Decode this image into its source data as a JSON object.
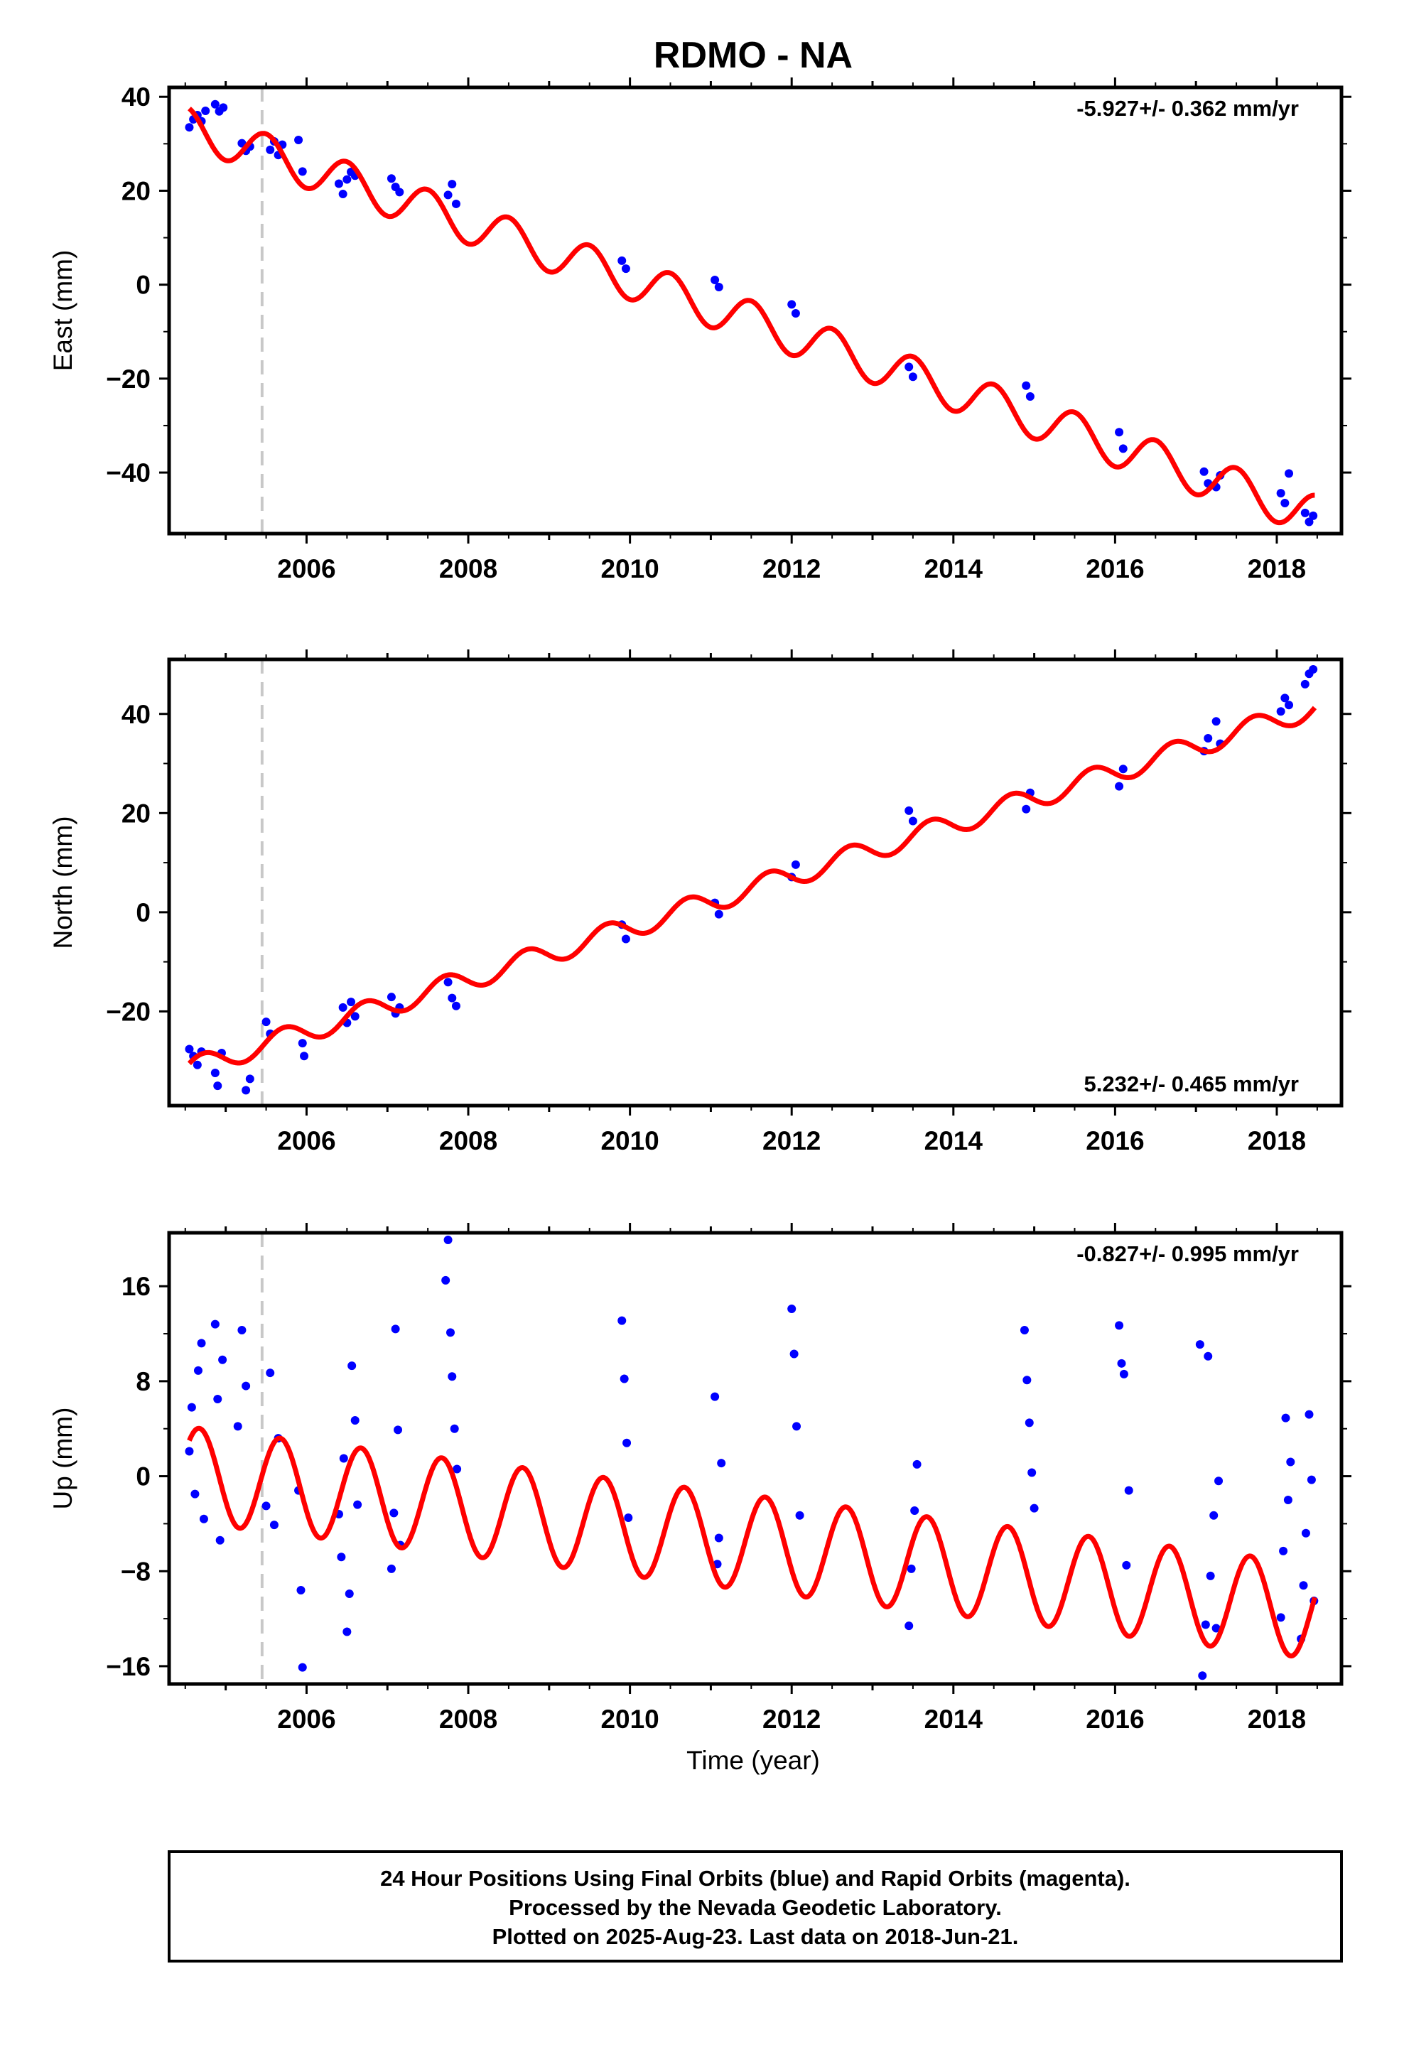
{
  "chart_data": [
    {
      "type": "scatter",
      "title": "RDMO - NA",
      "ylabel": "East (mm)",
      "xlabel": "",
      "xlim": [
        2004.3,
        2018.8
      ],
      "ylim": [
        -53,
        42
      ],
      "yticks": [
        -40,
        -20,
        0,
        20,
        40
      ],
      "xticks": [
        2006,
        2008,
        2010,
        2012,
        2014,
        2016,
        2018
      ],
      "rate_label": "-5.927+/- 0.362 mm/yr",
      "rate_position": "top-right",
      "dashed_line_x": 2005.45,
      "model": {
        "name": "Model fit",
        "color": "#ff0000",
        "intercept": 37.5,
        "slope": -5.927,
        "amplitude": 4.3,
        "phase": 1.9,
        "offset": 0
      },
      "series": [
        {
          "name": "Final Orbits",
          "color": "#0000ff",
          "points": [
            [
              2004.55,
              33.5
            ],
            [
              2004.6,
              35.2
            ],
            [
              2004.65,
              36.1
            ],
            [
              2004.7,
              34.8
            ],
            [
              2004.75,
              37.0
            ],
            [
              2004.87,
              38.4
            ],
            [
              2004.92,
              36.9
            ],
            [
              2004.97,
              37.7
            ],
            [
              2005.2,
              30.1
            ],
            [
              2005.25,
              28.5
            ],
            [
              2005.3,
              29.4
            ],
            [
              2005.55,
              28.7
            ],
            [
              2005.6,
              30.5
            ],
            [
              2005.65,
              27.6
            ],
            [
              2005.7,
              29.8
            ],
            [
              2005.9,
              30.8
            ],
            [
              2005.95,
              24.1
            ],
            [
              2006.4,
              21.5
            ],
            [
              2006.45,
              19.3
            ],
            [
              2006.5,
              22.4
            ],
            [
              2006.55,
              24.0
            ],
            [
              2006.6,
              23.2
            ],
            [
              2007.05,
              22.6
            ],
            [
              2007.1,
              20.8
            ],
            [
              2007.15,
              19.7
            ],
            [
              2007.75,
              19.1
            ],
            [
              2007.8,
              21.4
            ],
            [
              2007.85,
              17.2
            ],
            [
              2009.9,
              5.1
            ],
            [
              2009.95,
              3.4
            ],
            [
              2011.05,
              1.0
            ],
            [
              2011.1,
              -0.5
            ],
            [
              2012.0,
              -4.2
            ],
            [
              2012.05,
              -6.1
            ],
            [
              2013.45,
              -17.5
            ],
            [
              2013.5,
              -19.6
            ],
            [
              2014.9,
              -21.5
            ],
            [
              2014.95,
              -23.8
            ],
            [
              2016.05,
              -31.4
            ],
            [
              2016.1,
              -34.9
            ],
            [
              2017.1,
              -39.8
            ],
            [
              2017.15,
              -42.3
            ],
            [
              2017.25,
              -43.1
            ],
            [
              2017.3,
              -40.6
            ],
            [
              2018.05,
              -44.4
            ],
            [
              2018.1,
              -46.5
            ],
            [
              2018.15,
              -40.2
            ],
            [
              2018.35,
              -48.6
            ],
            [
              2018.4,
              -50.5
            ],
            [
              2018.45,
              -49.2
            ]
          ]
        }
      ]
    },
    {
      "type": "scatter",
      "title": "",
      "ylabel": "North (mm)",
      "xlabel": "",
      "xlim": [
        2004.3,
        2018.8
      ],
      "ylim": [
        -39,
        51
      ],
      "yticks": [
        -20,
        0,
        20,
        40
      ],
      "xticks": [
        2006,
        2008,
        2010,
        2012,
        2014,
        2016,
        2018
      ],
      "rate_label": "5.232+/- 0.465 mm/yr",
      "rate_position": "bottom-right",
      "dashed_line_x": 2005.45,
      "model": {
        "name": "Model fit",
        "color": "#ff0000",
        "intercept": -30.5,
        "slope": 5.232,
        "amplitude": 2.2,
        "phase": 0.5,
        "offset": 3.0
      },
      "series": [
        {
          "name": "Final Orbits",
          "color": "#0000ff",
          "points": [
            [
              2004.55,
              -27.6
            ],
            [
              2004.6,
              -29.0
            ],
            [
              2004.65,
              -30.8
            ],
            [
              2004.7,
              -28.1
            ],
            [
              2004.87,
              -32.4
            ],
            [
              2004.9,
              -35.0
            ],
            [
              2004.95,
              -28.4
            ],
            [
              2005.25,
              -35.9
            ],
            [
              2005.3,
              -33.6
            ],
            [
              2005.5,
              -22.1
            ],
            [
              2005.55,
              -24.5
            ],
            [
              2005.95,
              -26.4
            ],
            [
              2005.97,
              -29.0
            ],
            [
              2006.45,
              -19.2
            ],
            [
              2006.5,
              -22.3
            ],
            [
              2006.55,
              -18.1
            ],
            [
              2006.6,
              -21.0
            ],
            [
              2007.05,
              -17.1
            ],
            [
              2007.1,
              -20.4
            ],
            [
              2007.15,
              -19.2
            ],
            [
              2007.75,
              -14.1
            ],
            [
              2007.8,
              -17.3
            ],
            [
              2007.85,
              -18.9
            ],
            [
              2009.9,
              -2.5
            ],
            [
              2009.95,
              -5.4
            ],
            [
              2011.05,
              1.9
            ],
            [
              2011.1,
              -0.4
            ],
            [
              2012.0,
              7.1
            ],
            [
              2012.05,
              9.6
            ],
            [
              2013.45,
              20.5
            ],
            [
              2013.5,
              18.4
            ],
            [
              2014.9,
              20.8
            ],
            [
              2014.95,
              24.1
            ],
            [
              2016.05,
              25.4
            ],
            [
              2016.1,
              28.9
            ],
            [
              2017.1,
              32.5
            ],
            [
              2017.15,
              35.1
            ],
            [
              2017.25,
              38.5
            ],
            [
              2017.3,
              34.0
            ],
            [
              2018.05,
              40.5
            ],
            [
              2018.1,
              43.2
            ],
            [
              2018.15,
              41.8
            ],
            [
              2018.35,
              46.0
            ],
            [
              2018.4,
              48.1
            ],
            [
              2018.45,
              49.0
            ]
          ]
        }
      ]
    },
    {
      "type": "scatter",
      "title": "",
      "ylabel": "Up (mm)",
      "xlabel": "Time (year)",
      "xlim": [
        2004.3,
        2018.8
      ],
      "ylim": [
        -17.5,
        20.5
      ],
      "yticks": [
        -16,
        -8,
        0,
        8,
        16
      ],
      "ytick_labels": [
        "−16",
        "−8",
        "0",
        "8",
        "16"
      ],
      "xticks": [
        2006,
        2008,
        2010,
        2012,
        2014,
        2016,
        2018
      ],
      "rate_label": "-0.827+/- 0.995 mm/yr",
      "rate_position": "top-right",
      "dashed_line_x": 2005.45,
      "model": {
        "name": "Model fit",
        "color": "#ff0000",
        "intercept": 3.0,
        "slope": -0.827,
        "amplitude": 4.0,
        "phase": 0.8,
        "offset": 0
      },
      "series": [
        {
          "name": "Final Orbits",
          "color": "#0000ff",
          "points": [
            [
              2004.55,
              2.1
            ],
            [
              2004.58,
              5.8
            ],
            [
              2004.62,
              -1.5
            ],
            [
              2004.66,
              8.9
            ],
            [
              2004.7,
              11.2
            ],
            [
              2004.73,
              -3.6
            ],
            [
              2004.87,
              12.8
            ],
            [
              2004.9,
              6.5
            ],
            [
              2004.93,
              -5.4
            ],
            [
              2004.96,
              9.8
            ],
            [
              2005.15,
              4.2
            ],
            [
              2005.2,
              12.3
            ],
            [
              2005.25,
              7.6
            ],
            [
              2005.5,
              -2.5
            ],
            [
              2005.55,
              8.7
            ],
            [
              2005.6,
              -4.1
            ],
            [
              2005.65,
              3.2
            ],
            [
              2005.9,
              -1.2
            ],
            [
              2005.93,
              -9.6
            ],
            [
              2005.95,
              -16.1
            ],
            [
              2006.4,
              -3.2
            ],
            [
              2006.43,
              -6.8
            ],
            [
              2006.46,
              1.5
            ],
            [
              2006.5,
              -13.1
            ],
            [
              2006.53,
              -9.9
            ],
            [
              2006.56,
              9.3
            ],
            [
              2006.6,
              4.7
            ],
            [
              2006.63,
              -2.4
            ],
            [
              2007.05,
              -7.8
            ],
            [
              2007.08,
              -3.1
            ],
            [
              2007.1,
              12.4
            ],
            [
              2007.13,
              3.9
            ],
            [
              2007.16,
              -5.8
            ],
            [
              2007.72,
              16.5
            ],
            [
              2007.75,
              19.9
            ],
            [
              2007.78,
              12.1
            ],
            [
              2007.8,
              8.4
            ],
            [
              2007.83,
              4.0
            ],
            [
              2007.86,
              0.6
            ],
            [
              2009.9,
              13.1
            ],
            [
              2009.93,
              8.2
            ],
            [
              2009.96,
              2.8
            ],
            [
              2009.98,
              -3.5
            ],
            [
              2011.05,
              6.7
            ],
            [
              2011.08,
              -7.4
            ],
            [
              2011.1,
              -5.2
            ],
            [
              2011.13,
              1.1
            ],
            [
              2012.0,
              14.1
            ],
            [
              2012.03,
              10.3
            ],
            [
              2012.06,
              4.2
            ],
            [
              2012.1,
              -3.3
            ],
            [
              2013.45,
              -12.6
            ],
            [
              2013.48,
              -7.8
            ],
            [
              2013.52,
              -2.9
            ],
            [
              2013.55,
              1.0
            ],
            [
              2014.88,
              12.3
            ],
            [
              2014.91,
              8.1
            ],
            [
              2014.94,
              4.5
            ],
            [
              2014.97,
              0.3
            ],
            [
              2015.0,
              -2.7
            ],
            [
              2016.05,
              12.7
            ],
            [
              2016.08,
              9.5
            ],
            [
              2016.11,
              8.6
            ],
            [
              2016.14,
              -7.5
            ],
            [
              2016.17,
              -1.2
            ],
            [
              2017.05,
              11.1
            ],
            [
              2017.08,
              -16.8
            ],
            [
              2017.12,
              -12.5
            ],
            [
              2017.15,
              10.1
            ],
            [
              2017.18,
              -8.4
            ],
            [
              2017.22,
              -3.3
            ],
            [
              2017.25,
              -12.8
            ],
            [
              2017.28,
              -0.4
            ],
            [
              2018.05,
              -11.9
            ],
            [
              2018.08,
              -6.3
            ],
            [
              2018.11,
              4.9
            ],
            [
              2018.14,
              -2.0
            ],
            [
              2018.17,
              1.2
            ],
            [
              2018.3,
              -13.7
            ],
            [
              2018.33,
              -9.2
            ],
            [
              2018.36,
              -4.8
            ],
            [
              2018.4,
              5.2
            ],
            [
              2018.43,
              -0.3
            ],
            [
              2018.46,
              -10.5
            ]
          ]
        }
      ]
    }
  ],
  "footer": {
    "line1": "24 Hour Positions Using Final Orbits (blue) and Rapid Orbits (magenta).",
    "line2": "Processed by the Nevada Geodetic Laboratory.",
    "line3": "Plotted on 2025-Aug-23. Last data on 2018-Jun-21."
  }
}
